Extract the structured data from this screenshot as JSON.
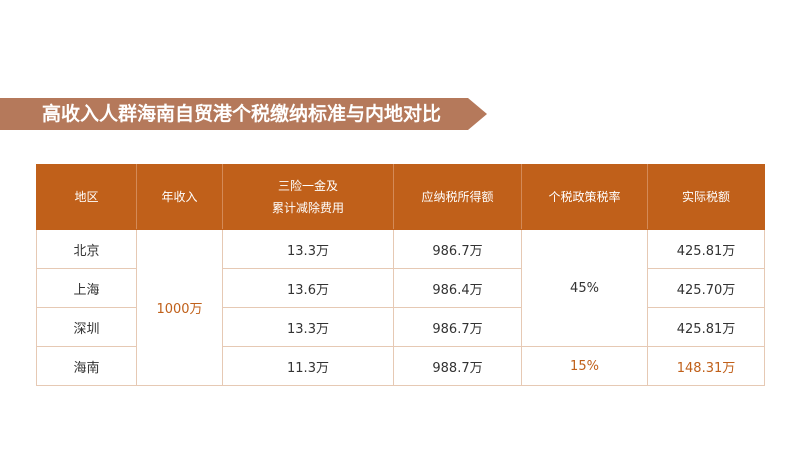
{
  "title": "高收入人群海南自贸港个税缴纳标准与内地对比",
  "headers": {
    "region": "地区",
    "income": "年收入",
    "deduction_line1": "三险一金及",
    "deduction_line2": "累计减除费用",
    "taxable": "应纳税所得额",
    "rate": "个税政策税率",
    "actual_tax": "实际税额"
  },
  "shared": {
    "annual_income": "1000万",
    "mainland_rate": "45%"
  },
  "rows": [
    {
      "region": "北京",
      "deduction": "13.3万",
      "taxable": "986.7万",
      "actual_tax": "425.81万"
    },
    {
      "region": "上海",
      "deduction": "13.6万",
      "taxable": "986.4万",
      "actual_tax": "425.70万"
    },
    {
      "region": "深圳",
      "deduction": "13.3万",
      "taxable": "986.7万",
      "actual_tax": "425.81万"
    },
    {
      "region": "海南",
      "deduction": "11.3万",
      "taxable": "988.7万",
      "rate": "15%",
      "actual_tax": "148.31万"
    }
  ],
  "colors": {
    "header_bg": "#c0601a",
    "banner_bg": "#b5795b",
    "highlight": "#c0601a",
    "border": "#e6c9b4"
  }
}
